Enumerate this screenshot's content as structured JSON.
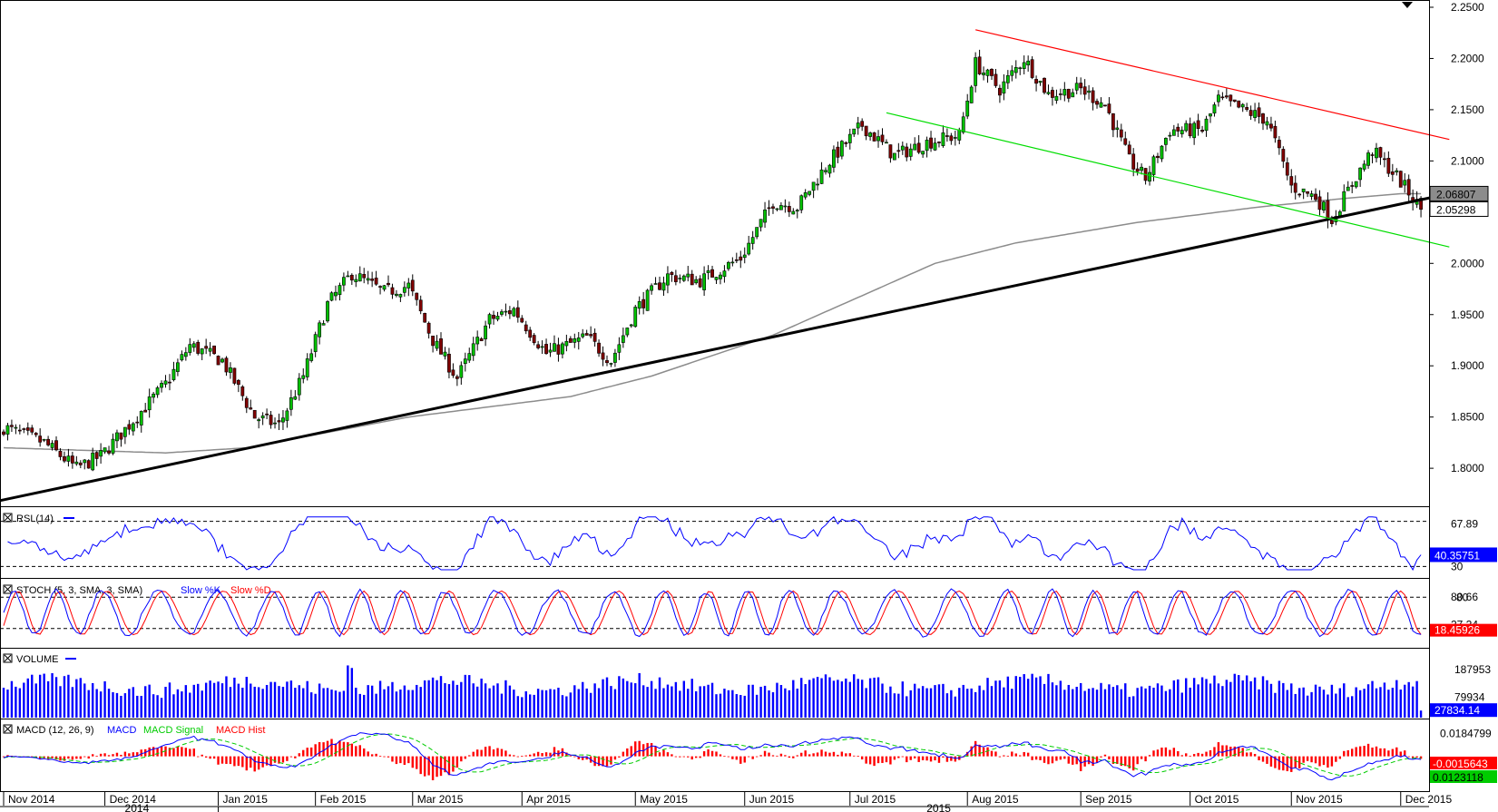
{
  "chart_data": [
    {
      "type": "candlestick",
      "panel": "price",
      "ylim": [
        1.77,
        2.25
      ],
      "y_ticks": [
        "2.2500",
        "2.2000",
        "2.1500",
        "2.1000",
        "2.0500",
        "2.0000",
        "1.9500",
        "1.9000",
        "1.8500",
        "1.8000"
      ],
      "price_badges": [
        {
          "label": "2.06807",
          "value": 2.06807,
          "color": "#8c8c8c"
        },
        {
          "label": "2.05298",
          "value": 2.05298,
          "color": "#ffffff"
        }
      ],
      "ohlc_anchor_path": [
        [
          0,
          1.84
        ],
        [
          10,
          1.825
        ],
        [
          18,
          1.8
        ],
        [
          24,
          1.812
        ],
        [
          30,
          1.838
        ],
        [
          40,
          1.882
        ],
        [
          46,
          1.92
        ],
        [
          54,
          1.905
        ],
        [
          62,
          1.85
        ],
        [
          68,
          1.842
        ],
        [
          74,
          1.89
        ],
        [
          80,
          1.96
        ],
        [
          86,
          1.99
        ],
        [
          94,
          1.972
        ],
        [
          100,
          1.978
        ],
        [
          106,
          1.925
        ],
        [
          112,
          1.888
        ],
        [
          120,
          1.945
        ],
        [
          126,
          1.955
        ],
        [
          134,
          1.912
        ],
        [
          144,
          1.928
        ],
        [
          150,
          1.905
        ],
        [
          156,
          1.955
        ],
        [
          164,
          1.988
        ],
        [
          172,
          1.983
        ],
        [
          182,
          2.005
        ],
        [
          190,
          2.06
        ],
        [
          196,
          2.055
        ],
        [
          204,
          2.1
        ],
        [
          212,
          2.135
        ],
        [
          220,
          2.105
        ],
        [
          228,
          2.118
        ],
        [
          236,
          2.125
        ],
        [
          240,
          2.195
        ],
        [
          246,
          2.17
        ],
        [
          252,
          2.2
        ],
        [
          258,
          2.165
        ],
        [
          266,
          2.17
        ],
        [
          272,
          2.155
        ],
        [
          278,
          2.1
        ],
        [
          282,
          2.083
        ],
        [
          288,
          2.13
        ],
        [
          296,
          2.13
        ],
        [
          300,
          2.16
        ],
        [
          306,
          2.15
        ],
        [
          312,
          2.14
        ],
        [
          318,
          2.075
        ],
        [
          324,
          2.065
        ],
        [
          328,
          2.043
        ],
        [
          334,
          2.085
        ],
        [
          338,
          2.11
        ],
        [
          344,
          2.085
        ],
        [
          350,
          2.053
        ]
      ],
      "moving_average_path": [
        [
          0,
          1.82
        ],
        [
          40,
          1.815
        ],
        [
          60,
          1.82
        ],
        [
          100,
          1.85
        ],
        [
          140,
          1.87
        ],
        [
          160,
          1.89
        ],
        [
          190,
          1.93
        ],
        [
          210,
          1.965
        ],
        [
          230,
          2.0
        ],
        [
          250,
          2.02
        ],
        [
          280,
          2.04
        ],
        [
          310,
          2.055
        ],
        [
          330,
          2.063
        ],
        [
          345,
          2.068
        ],
        [
          350,
          2.068
        ]
      ],
      "trendlines": [
        {
          "name": "support",
          "color": "#000000",
          "from": [
            -5,
            1.765
          ],
          "to": [
            357,
            2.068
          ]
        },
        {
          "name": "resistance",
          "color": "#ff0000",
          "from": [
            240,
            2.228
          ],
          "to": [
            357,
            2.121
          ]
        },
        {
          "name": "lower-channel",
          "color": "#00dd00",
          "from": [
            218,
            2.147
          ],
          "to": [
            357,
            2.016
          ]
        }
      ]
    },
    {
      "type": "line",
      "panel": "rsi",
      "label": "RSI (14)",
      "ylim": [
        23,
        77
      ],
      "levels": [
        70,
        30
      ],
      "right_labels": [
        {
          "label": "67.89",
          "value": 67.89
        },
        {
          "label": "30",
          "value": 30
        }
      ],
      "badge": {
        "label": "40.35751",
        "value": 40.35751
      },
      "line_color": "#0000ff"
    },
    {
      "type": "line",
      "panel": "stoch",
      "label": "STOCH (5, 3, SMA, 3, SMA)",
      "legend": [
        {
          "name": "Slow %K",
          "color": "#0000ff"
        },
        {
          "name": "Slow %D",
          "color": "#ff0000"
        }
      ],
      "ylim": [
        -10,
        110
      ],
      "levels": [
        80,
        20
      ],
      "right_labels": [
        {
          "label": "80",
          "value": 80
        },
        {
          "label": "80.66",
          "value": 80.66
        },
        {
          "label": "27.24",
          "value": 27.24
        },
        {
          "label": "20",
          "value": 20
        }
      ],
      "badge": {
        "label": "18.45926",
        "value": 18.45926
      }
    },
    {
      "type": "bar",
      "panel": "volume",
      "label": "VOLUME",
      "ylim": [
        0,
        260000
      ],
      "right_labels": [
        {
          "label": "187953",
          "value": 187953
        },
        {
          "label": "79934",
          "value": 79934
        }
      ],
      "badge": {
        "label": "27834.14",
        "value": 27834.14
      },
      "bar_color": "#0000ff"
    },
    {
      "type": "line",
      "panel": "macd",
      "label": "MACD (12, 26, 9)",
      "legend": [
        {
          "name": "MACD",
          "color": "#0000ff"
        },
        {
          "name": "MACD Signal",
          "color": "#00cc00"
        },
        {
          "name": "MACD Hist",
          "color": "#ff0000"
        }
      ],
      "ylim": [
        -0.018,
        0.026
      ],
      "right_labels": [
        {
          "label": "0.0184799",
          "value": 0.0184799
        }
      ],
      "badges": [
        {
          "label": "-0.0015643",
          "value": -0.0015643,
          "color": "#ff0000"
        },
        {
          "label": "0.0123118",
          "value": 0.0123118,
          "color": "#00cc00"
        }
      ]
    }
  ],
  "x_axis": {
    "months": [
      {
        "label": "Nov 2014",
        "day": 0
      },
      {
        "label": "Dec 2014",
        "day": 25
      },
      {
        "label": "Jan 2015",
        "day": 53
      },
      {
        "label": "Feb 2015",
        "day": 77
      },
      {
        "label": "Mar 2015",
        "day": 101
      },
      {
        "label": "Apr 2015",
        "day": 128
      },
      {
        "label": "May 2015",
        "day": 156
      },
      {
        "label": "Jun 2015",
        "day": 183
      },
      {
        "label": "Jul 2015",
        "day": 209
      },
      {
        "label": "Aug 2015",
        "day": 238
      },
      {
        "label": "Sep 2015",
        "day": 266
      },
      {
        "label": "Oct 2015",
        "day": 293
      },
      {
        "label": "Nov 2015",
        "day": 318
      },
      {
        "label": "Dec 2015",
        "day": 345
      }
    ],
    "years": [
      {
        "label": "2014",
        "day": 12
      },
      {
        "label": "2015",
        "day": 210
      }
    ]
  }
}
